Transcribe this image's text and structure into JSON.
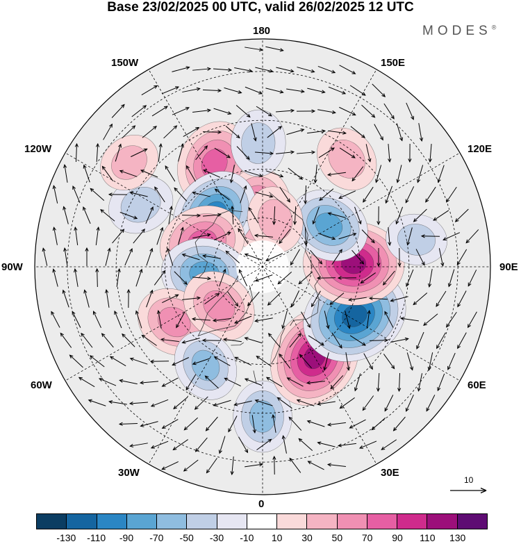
{
  "title": "Base 23/02/2025 00 UTC, valid 26/02/2025 12 UTC",
  "brand": "MODES",
  "brand_mark": "®",
  "longitude_labels": {
    "lon_180": "180",
    "lon_150w": "150W",
    "lon_150e": "150E",
    "lon_120w": "120W",
    "lon_120e": "120E",
    "lon_90w": "90W",
    "lon_90e": "90E",
    "lon_60w": "60W",
    "lon_60e": "60E",
    "lon_30w": "30W",
    "lon_30e": "30E",
    "lon_0": "0"
  },
  "reference_vector": "10",
  "colorbar": {
    "colors": [
      "#0b3d62",
      "#1565a0",
      "#2b86c4",
      "#5aa5d3",
      "#8fbde0",
      "#c0cfe6",
      "#e6e6f2",
      "#ffffff",
      "#fadada",
      "#f5b4c3",
      "#f090b3",
      "#e65fa3",
      "#cf2b8c",
      "#9c0f7a",
      "#5e0c73"
    ],
    "tick_labels": [
      "-130",
      "-110",
      "-90",
      "-70",
      "-50",
      "-30",
      "-10",
      "10",
      "30",
      "50",
      "70",
      "90",
      "110",
      "130"
    ]
  },
  "anomalies": [
    {
      "name": "pos-150w",
      "lat": 55,
      "lon": -155,
      "value": 80
    },
    {
      "name": "pos-near-pole-180",
      "lat": 72,
      "lon": -175,
      "value": 70
    },
    {
      "name": "neg-180-outer",
      "lat": 52,
      "lon": -178,
      "value": -40
    },
    {
      "name": "neg-130w",
      "lat": 68,
      "lon": -138,
      "value": -90
    },
    {
      "name": "pos-110w",
      "lat": 70,
      "lon": -112,
      "value": 80
    },
    {
      "name": "neg-115w-outer",
      "lat": 48,
      "lon": -117,
      "value": -40
    },
    {
      "name": "pos-125w-outer",
      "lat": 38,
      "lon": -128,
      "value": 30
    },
    {
      "name": "neg-80w",
      "lat": 72,
      "lon": -83,
      "value": -80
    },
    {
      "name": "pos-50w",
      "lat": 58,
      "lon": -58,
      "value": 60
    },
    {
      "name": "pos-40w",
      "lat": 72,
      "lon": -48,
      "value": 60
    },
    {
      "name": "neg-30w",
      "lat": 55,
      "lon": -30,
      "value": -50
    },
    {
      "name": "neg-0",
      "lat": 44,
      "lon": 0,
      "value": -50
    },
    {
      "name": "pos-30e",
      "lat": 58,
      "lon": 30,
      "value": 110
    },
    {
      "name": "neg-60e",
      "lat": 58,
      "lon": 62,
      "value": -120
    },
    {
      "name": "pos-90e",
      "lat": 62,
      "lon": 92,
      "value": 110
    },
    {
      "name": "neg-115e",
      "lat": 66,
      "lon": 122,
      "value": -70
    },
    {
      "name": "pos-145e",
      "lat": 48,
      "lon": 142,
      "value": 40
    },
    {
      "name": "neg-100e-outer",
      "lat": 42,
      "lon": 100,
      "value": -30
    },
    {
      "name": "pos-160e-inner",
      "lat": 75,
      "lon": 165,
      "value": 40
    }
  ]
}
